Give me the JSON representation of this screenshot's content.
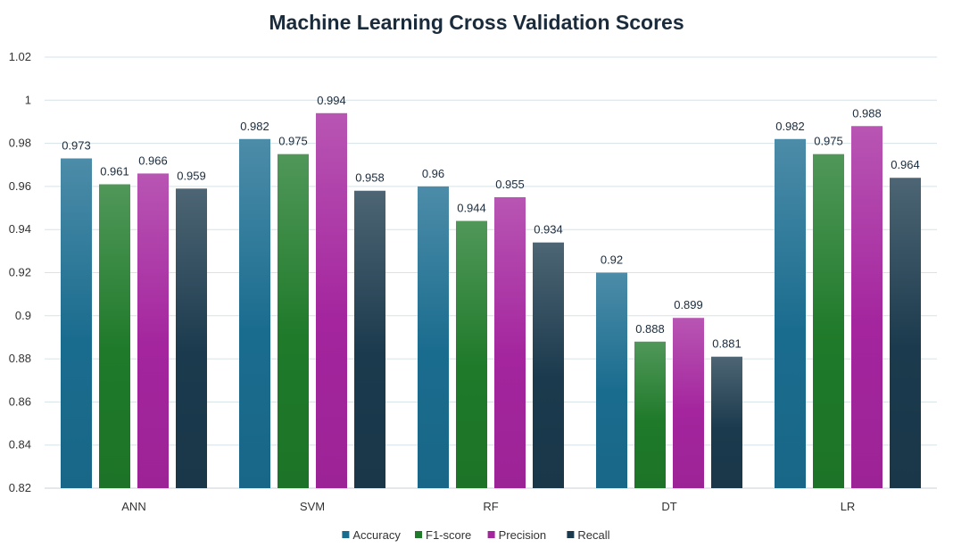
{
  "chart_data": {
    "type": "bar",
    "title": "Machine Learning Cross Validation Scores",
    "xlabel": "",
    "ylabel": "",
    "ylim": [
      0.82,
      1.02
    ],
    "yticks": [
      0.82,
      0.84,
      0.86,
      0.88,
      0.9,
      0.92,
      0.94,
      0.96,
      0.98,
      1,
      1.02
    ],
    "grid": true,
    "legend_position": "bottom",
    "categories": [
      "ANN",
      "SVM",
      "RF",
      "DT",
      "LR"
    ],
    "series": [
      {
        "name": "Accuracy",
        "color": "#1a6c8f",
        "values": [
          0.973,
          0.982,
          0.96,
          0.92,
          0.982
        ]
      },
      {
        "name": "F1-score",
        "color": "#1f7a2a",
        "values": [
          0.961,
          0.975,
          0.944,
          0.888,
          0.975
        ]
      },
      {
        "name": "Precision",
        "color": "#a4259e",
        "values": [
          0.966,
          0.994,
          0.955,
          0.899,
          0.988
        ]
      },
      {
        "name": "Recall",
        "color": "#1b3a4d",
        "values": [
          0.959,
          0.958,
          0.934,
          0.881,
          0.964
        ]
      }
    ]
  }
}
